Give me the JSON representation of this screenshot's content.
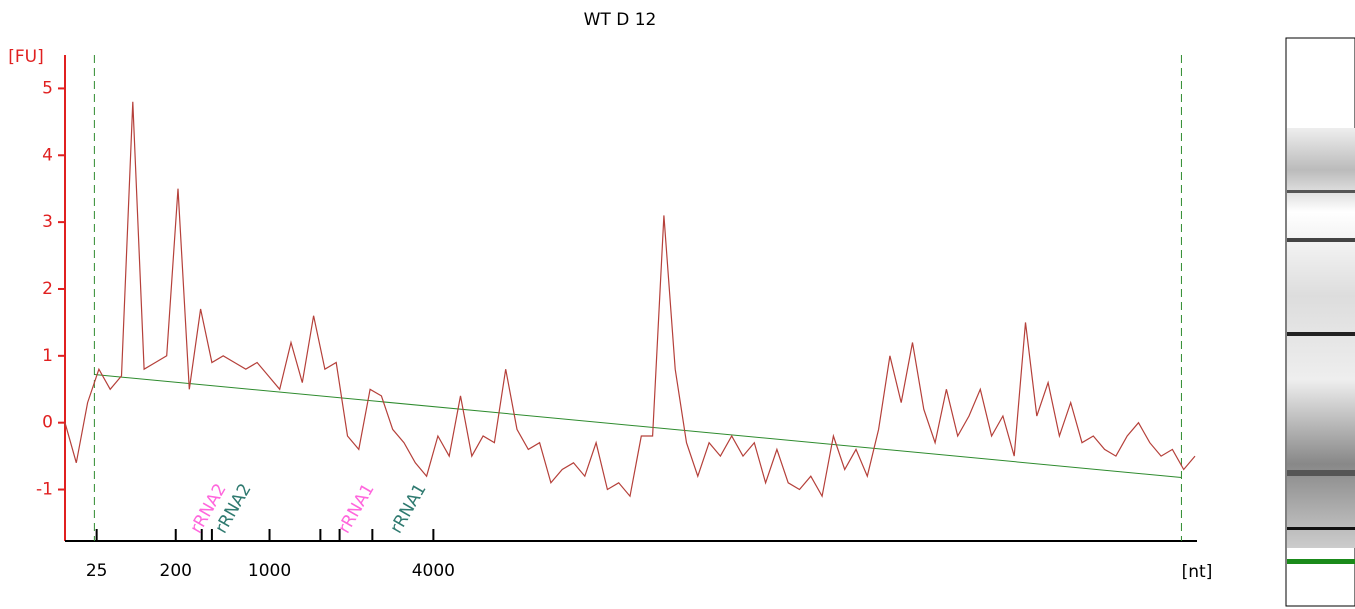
{
  "chart_data": {
    "type": "line",
    "title": "WT D 12",
    "y_label": "[FU]",
    "x_label": "[nt]",
    "xlim": [
      0,
      100
    ],
    "ylim": [
      -1.77,
      5.5
    ],
    "yticks": [
      -1,
      0,
      1,
      2,
      3,
      4,
      5
    ],
    "xticks": [
      {
        "value": 2.8,
        "label": "25"
      },
      {
        "value": 9.8,
        "label": "200"
      },
      {
        "value": 12.1,
        "label": null
      },
      {
        "value": 13.0,
        "label": null
      },
      {
        "value": 18.1,
        "label": "1000"
      },
      {
        "value": 22.6,
        "label": null
      },
      {
        "value": 24.3,
        "label": null
      },
      {
        "value": 27.2,
        "label": null
      },
      {
        "value": 32.6,
        "label": "4000"
      }
    ],
    "markers": [
      2.6,
      98.8
    ],
    "baseline": {
      "x": [
        2.6,
        98.8
      ],
      "values": [
        0.72,
        -0.82
      ],
      "color": "#2e8b2e"
    },
    "annotations": [
      {
        "text": "rRNA2",
        "color": "#ff66dd"
      },
      {
        "text": "rRNA2",
        "color": "#2f7a70"
      },
      {
        "text": "rRNA1",
        "color": "#ff66dd"
      },
      {
        "text": "rRNA1",
        "color": "#2f7a70"
      }
    ],
    "series": [
      {
        "name": "WT D 12",
        "color": "#b5403a",
        "values": [
          0.0,
          -0.6,
          0.3,
          0.8,
          0.5,
          0.7,
          4.8,
          0.8,
          0.9,
          1.0,
          3.5,
          0.5,
          1.7,
          0.9,
          1.0,
          0.9,
          0.8,
          0.9,
          0.7,
          0.5,
          1.2,
          0.6,
          1.6,
          0.8,
          0.9,
          -0.2,
          -0.4,
          0.5,
          0.4,
          -0.1,
          -0.3,
          -0.6,
          -0.8,
          -0.2,
          -0.5,
          0.4,
          -0.5,
          -0.2,
          -0.3,
          0.8,
          -0.1,
          -0.4,
          -0.3,
          -0.9,
          -0.7,
          -0.6,
          -0.8,
          -0.3,
          -1.0,
          -0.9,
          -1.1,
          -0.2,
          -0.2,
          3.1,
          0.8,
          -0.3,
          -0.8,
          -0.3,
          -0.5,
          -0.2,
          -0.5,
          -0.3,
          -0.9,
          -0.4,
          -0.9,
          -1.0,
          -0.8,
          -1.1,
          -0.2,
          -0.7,
          -0.4,
          -0.8,
          -0.1,
          1.0,
          0.3,
          1.2,
          0.2,
          -0.3,
          0.5,
          -0.2,
          0.1,
          0.5,
          -0.2,
          0.1,
          -0.5,
          1.5,
          0.1,
          0.6,
          -0.2,
          0.3,
          -0.3,
          -0.2,
          -0.4,
          -0.5,
          -0.2,
          0.0,
          -0.3,
          -0.5,
          -0.4,
          -0.7,
          -0.5
        ]
      }
    ]
  }
}
